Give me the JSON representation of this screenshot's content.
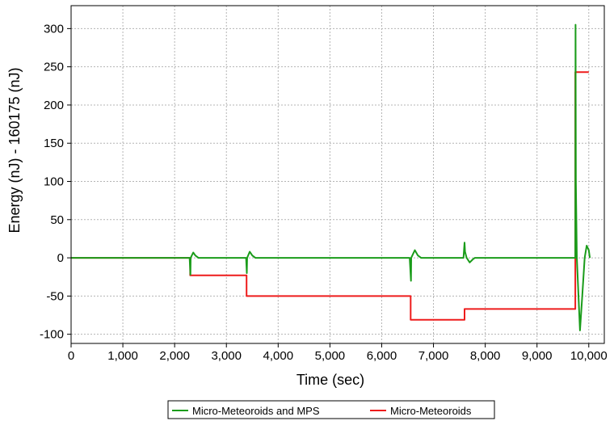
{
  "chart_data": {
    "type": "line",
    "xlabel": "Time (sec)",
    "ylabel": "Energy (nJ) - 160175 (nJ)",
    "xlim": [
      0,
      10300
    ],
    "ylim": [
      -112,
      330
    ],
    "x_ticks": [
      0,
      1000,
      2000,
      3000,
      4000,
      5000,
      6000,
      7000,
      8000,
      9000,
      10000
    ],
    "x_tick_labels": [
      "0",
      "1,000",
      "2,000",
      "3,000",
      "4,000",
      "5,000",
      "6,000",
      "7,000",
      "8,000",
      "9,000",
      "10,000"
    ],
    "y_ticks": [
      -100,
      -50,
      0,
      50,
      100,
      150,
      200,
      250,
      300
    ],
    "y_tick_labels": [
      "-100",
      "-50",
      "0",
      "50",
      "100",
      "150",
      "200",
      "250",
      "300"
    ],
    "grid": true,
    "legend_position": "bottom-center",
    "series": [
      {
        "name": "Micro-Meteoroids",
        "color": "#ee1c1c",
        "points": [
          [
            0,
            0
          ],
          [
            2300,
            0
          ],
          [
            2300,
            -23
          ],
          [
            3390,
            -23
          ],
          [
            3390,
            -50
          ],
          [
            4500,
            -50
          ],
          [
            6560,
            -50
          ],
          [
            6560,
            -81
          ],
          [
            7600,
            -81
          ],
          [
            7600,
            -67
          ],
          [
            9740,
            -67
          ],
          [
            9740,
            243
          ],
          [
            10000,
            243
          ]
        ]
      },
      {
        "name": "Micro-Meteoroids and MPS",
        "color": "#1a9c1a",
        "points": [
          [
            0,
            0
          ],
          [
            2290,
            0
          ],
          [
            2305,
            -22
          ],
          [
            2310,
            0
          ],
          [
            2360,
            7
          ],
          [
            2400,
            3
          ],
          [
            2460,
            0
          ],
          [
            3380,
            0
          ],
          [
            3395,
            -20
          ],
          [
            3400,
            0
          ],
          [
            3450,
            8
          ],
          [
            3500,
            3
          ],
          [
            3560,
            0
          ],
          [
            6540,
            0
          ],
          [
            6565,
            -30
          ],
          [
            6570,
            0
          ],
          [
            6640,
            10
          ],
          [
            6700,
            3
          ],
          [
            6760,
            0
          ],
          [
            7580,
            0
          ],
          [
            7600,
            20
          ],
          [
            7610,
            8
          ],
          [
            7640,
            0
          ],
          [
            7700,
            -6
          ],
          [
            7760,
            -2
          ],
          [
            7800,
            0
          ],
          [
            9740,
            0
          ],
          [
            9745,
            305
          ],
          [
            9750,
            100
          ],
          [
            9770,
            0
          ],
          [
            9830,
            -95
          ],
          [
            9870,
            -55
          ],
          [
            9920,
            0
          ],
          [
            9960,
            16
          ],
          [
            10000,
            10
          ],
          [
            10020,
            0
          ]
        ]
      }
    ]
  }
}
